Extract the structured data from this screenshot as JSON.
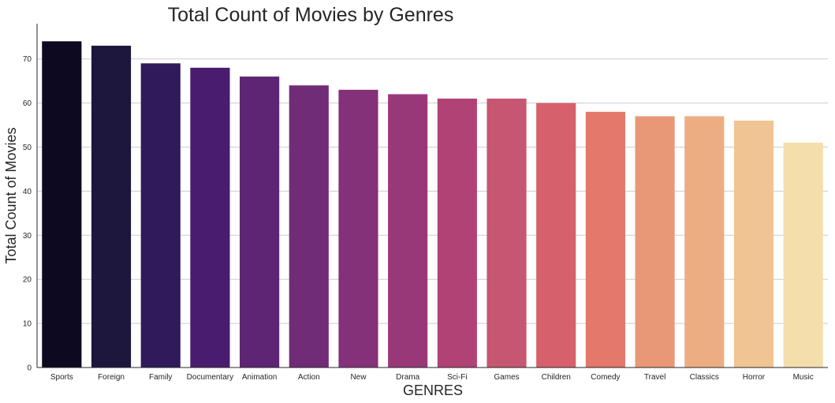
{
  "chart_data": {
    "type": "bar",
    "title": "Total Count of Movies by Genres",
    "xlabel": "GENRES",
    "ylabel": "Total Count of Movies",
    "categories": [
      "Sports",
      "Foreign",
      "Family",
      "Documentary",
      "Animation",
      "Action",
      "New",
      "Drama",
      "Sci-Fi",
      "Games",
      "Children",
      "Comedy",
      "Travel",
      "Classics",
      "Horror",
      "Music"
    ],
    "values": [
      74,
      73,
      69,
      68,
      66,
      64,
      63,
      62,
      61,
      61,
      60,
      58,
      57,
      57,
      56,
      51
    ],
    "ylim": [
      0,
      78
    ],
    "yticks": [
      0,
      10,
      20,
      30,
      40,
      50,
      60,
      70
    ],
    "grid": "horizontal",
    "colors": [
      "#0c0920",
      "#1d163d",
      "#311a5b",
      "#4a1c6f",
      "#5d2574",
      "#712c78",
      "#843179",
      "#993879",
      "#b14276",
      "#c65672",
      "#d7606d",
      "#e3786b",
      "#e99877",
      "#edad82",
      "#f0c493",
      "#f4deab"
    ]
  }
}
